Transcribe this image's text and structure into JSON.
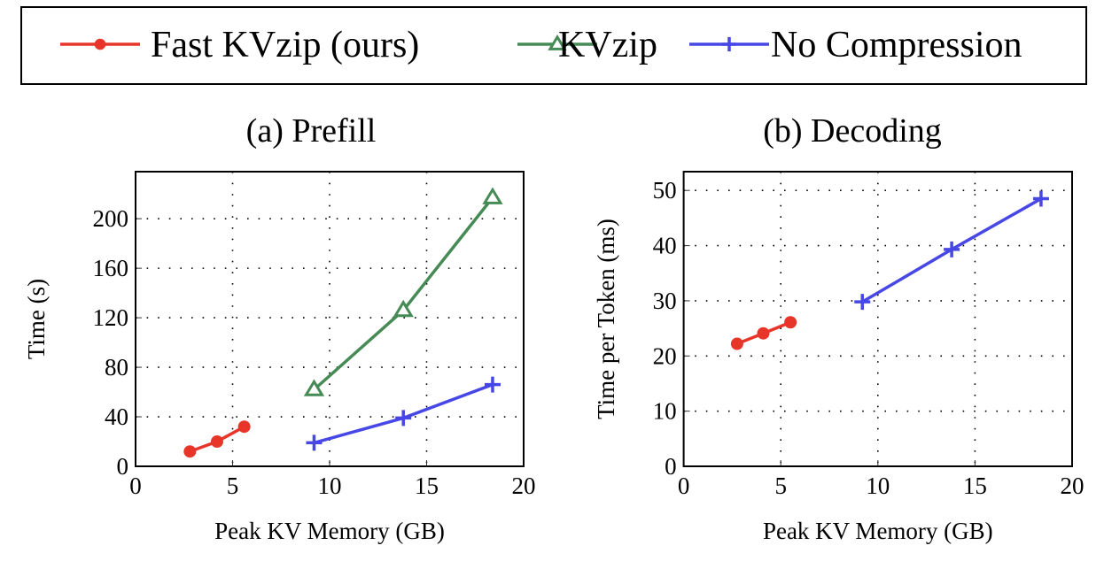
{
  "legend": {
    "placement": "top",
    "entries": [
      {
        "label": "Fast KVzip (ours)",
        "color": "#e8352a",
        "marker": "circle"
      },
      {
        "label": "KVzip",
        "color": "#468a55",
        "marker": "triangle"
      },
      {
        "label": "No Compression",
        "color": "#4747e6",
        "marker": "plus"
      }
    ]
  },
  "chart_data": [
    {
      "type": "line",
      "title": "(a) Prefill",
      "xlabel": "Peak KV Memory (GB)",
      "ylabel": "Time (s)",
      "xlim": [
        0,
        20
      ],
      "ylim": [
        0,
        238
      ],
      "xticks": [
        0,
        5,
        10,
        15,
        20
      ],
      "yticks": [
        0,
        40,
        80,
        120,
        160,
        200
      ],
      "grid": true,
      "series": [
        {
          "name": "Fast KVzip (ours)",
          "x": [
            2.8,
            4.2,
            5.6
          ],
          "y": [
            12,
            20,
            32
          ]
        },
        {
          "name": "KVzip",
          "x": [
            9.2,
            13.8,
            18.4
          ],
          "y": [
            62,
            126,
            217
          ]
        },
        {
          "name": "No Compression",
          "x": [
            9.2,
            13.8,
            18.4
          ],
          "y": [
            19,
            39,
            66
          ]
        }
      ]
    },
    {
      "type": "line",
      "title": "(b) Decoding",
      "xlabel": "Peak KV Memory (GB)",
      "ylabel": "Time per Token (ms)",
      "xlim": [
        0,
        20
      ],
      "ylim": [
        0,
        53.4
      ],
      "xticks": [
        0,
        5,
        10,
        15,
        20
      ],
      "yticks": [
        0,
        10,
        20,
        30,
        40,
        50
      ],
      "grid": true,
      "series": [
        {
          "name": "Fast KVzip (ours)",
          "x": [
            2.75,
            4.1,
            5.5
          ],
          "y": [
            22.2,
            24.1,
            26.1
          ]
        },
        {
          "name": "No Compression",
          "x": [
            9.2,
            13.8,
            18.4
          ],
          "y": [
            29.8,
            39.3,
            48.5
          ]
        }
      ]
    }
  ]
}
